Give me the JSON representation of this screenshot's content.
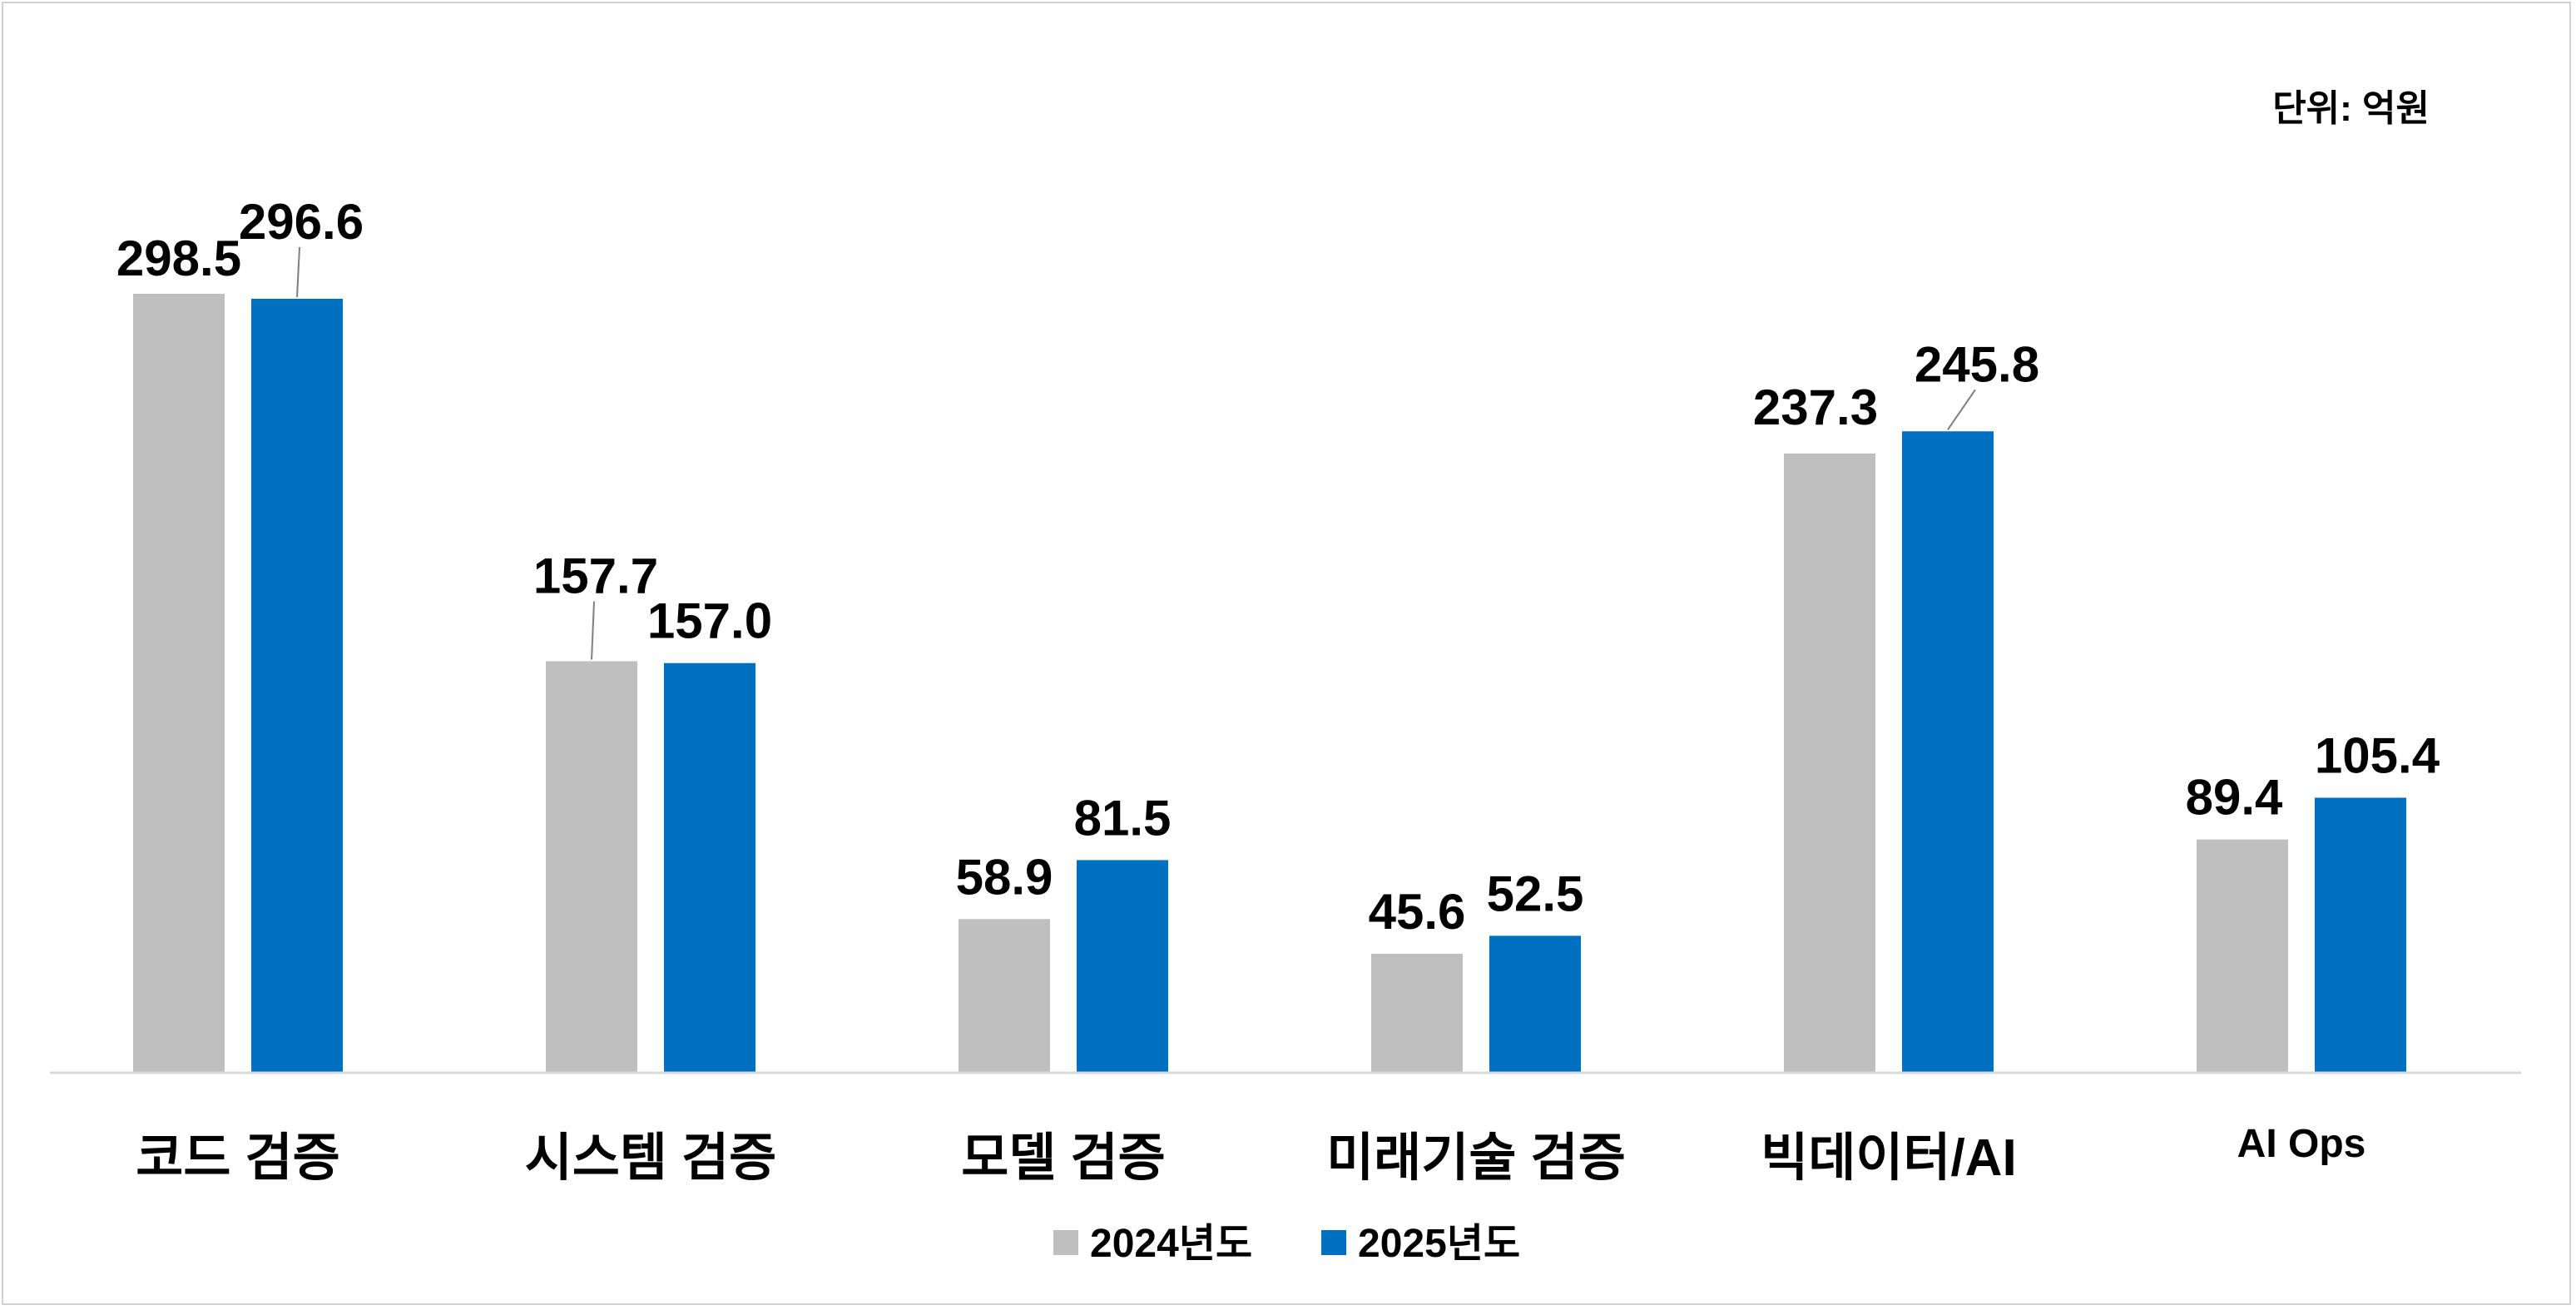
{
  "chart_data": {
    "type": "bar",
    "unit_label": "단위: 억원",
    "categories": [
      "코드 검증",
      "시스템 검증",
      "모델 검증",
      "미래기술 검증",
      "빅데이터/AI",
      "AI Ops"
    ],
    "series": [
      {
        "name": "2024년도",
        "color": "#BFBFBF",
        "values": [
          298.5,
          157.7,
          58.9,
          45.6,
          237.3,
          89.4
        ]
      },
      {
        "name": "2025년도",
        "color": "#0070C0",
        "values": [
          296.6,
          157.0,
          81.5,
          52.5,
          245.8,
          105.4
        ]
      }
    ],
    "ylim": [
      0,
      330
    ],
    "grid": false,
    "legend_position": "bottom",
    "data_labels": true
  }
}
